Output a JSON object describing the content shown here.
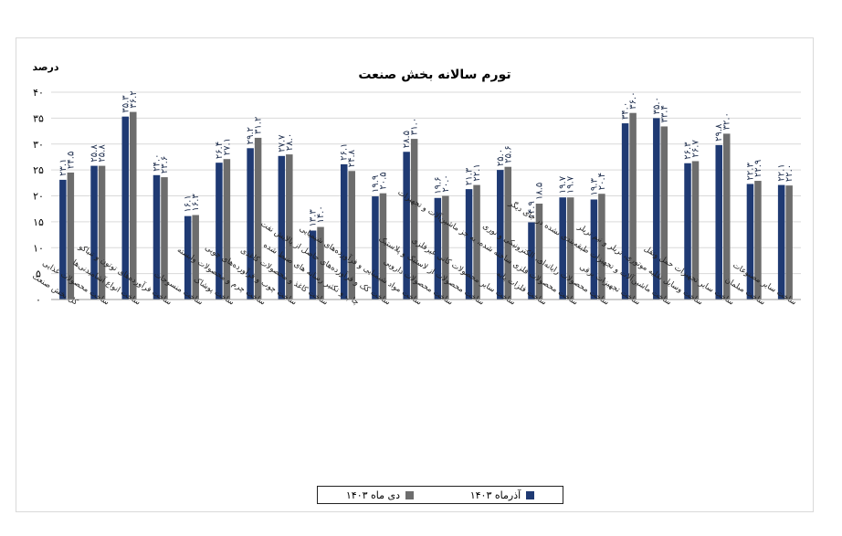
{
  "chart_data": {
    "type": "bar",
    "title": "تورم سالانه بخش صنعت",
    "ylabel": "درصد",
    "ylim": [
      0,
      40
    ],
    "yticks": [
      "۰",
      "۵",
      "۱۰",
      "۱۵",
      "۲۰",
      "۲۵",
      "۳۰",
      "۳۵",
      "۴۰"
    ],
    "ytick_values": [
      0,
      5,
      10,
      15,
      20,
      25,
      30,
      35,
      40
    ],
    "grid": true,
    "legend_position": "bottom",
    "categories": [
      "کل بخش صنعت",
      "ساخت محصولات غذایی",
      "ساخت انواع آشامیدنی‌ها",
      "ساخت فرآورده‌های توتون و تنباکو",
      "ساخت منسوجات",
      "ساخت پوشاک",
      "ساخت چرم و محصولات وابسته",
      "ساخت چوب و فرآورده‌های چوبی",
      "ساخت کاغذ و محصولات کاغذی",
      "چاپ و تکثیر رسانه های ضبط شده",
      "ساخت کک و فرآورده‌های حاصل از پالایش نفت",
      "ساخت مواد شیمیایی و فرآورده‌های شیمیایی",
      "ساخت محصولات دارویی",
      "ساخت محصولات از لاستیک و پلاستیک",
      "ساخت سایر محصولات کانی غیرفلزی",
      "ساخت فلزات پایه",
      "ساخت محصولات فلزی ساخته شده، به جز ماشین‌آلات و تجهیزات",
      "ساخت محصولات رایانه‌ای، الکترونیکی و نوری",
      "ساخت تجهیزات برقی",
      "ساخت ماشین‌آلات و تجهیزات طبقه‌بندی نشده در جای دیگر",
      "ساخت وسایل نقلیه موتوری، تریلر و نیم تریلر",
      "ساخت سایر تجهیزات حمل ونقل",
      "ساخت مبلمان",
      "ساخت سایر مصنوعات"
    ],
    "series": [
      {
        "name": "آذرماه ۱۴۰۳",
        "color": "#1f3a73",
        "values": [
          23.1,
          25.8,
          35.3,
          24.0,
          16.1,
          26.4,
          29.2,
          27.7,
          13.3,
          26.1,
          19.9,
          28.5,
          19.6,
          21.3,
          25.0,
          14.9,
          19.7,
          19.3,
          34.0,
          35.0,
          26.3,
          29.8,
          22.3,
          22.1
        ],
        "labels": [
          "۲۳.۱",
          "۲۵.۸",
          "۳۵.۳",
          "۲۴.۰",
          "۱۶.۱",
          "۲۶.۴",
          "۲۹.۲",
          "۲۷.۷",
          "۱۳.۳",
          "۲۶.۱",
          "۱۹.۹",
          "۲۸.۵",
          "۱۹.۶",
          "۲۱.۳",
          "۲۵.۰",
          "۱۴.۹",
          "۱۹.۷",
          "۱۹.۳",
          "۳۴.۰",
          "۳۵.۰",
          "۲۶.۳",
          "۲۹.۸",
          "۲۲.۳",
          "۲۲.۱"
        ]
      },
      {
        "name": "دی ماه ۱۴۰۳",
        "color": "#6d6d6d",
        "values": [
          24.5,
          25.8,
          36.2,
          23.6,
          16.3,
          27.1,
          31.2,
          28.0,
          14.0,
          24.8,
          20.5,
          31.0,
          20.0,
          22.1,
          25.6,
          18.5,
          19.7,
          20.4,
          36.0,
          33.4,
          26.7,
          32.0,
          22.9,
          22.0
        ],
        "labels": [
          "۲۴.۵",
          "۲۵.۸",
          "۳۶.۲",
          "۲۳.۶",
          "۱۶.۳",
          "۲۷.۱",
          "۳۱.۲",
          "۲۸.۰",
          "۱۴.۰",
          "۲۴.۸",
          "۲۰.۵",
          "۳۱.۰",
          "۲۰.۰",
          "۲۲.۱",
          "۲۵.۶",
          "۱۸.۵",
          "۱۹.۷",
          "۲۰.۴",
          "۳۶.۰",
          "۳۳.۴",
          "۲۶.۷",
          "۳۲.۰",
          "۲۲.۹",
          "۲۲.۰"
        ]
      }
    ]
  }
}
